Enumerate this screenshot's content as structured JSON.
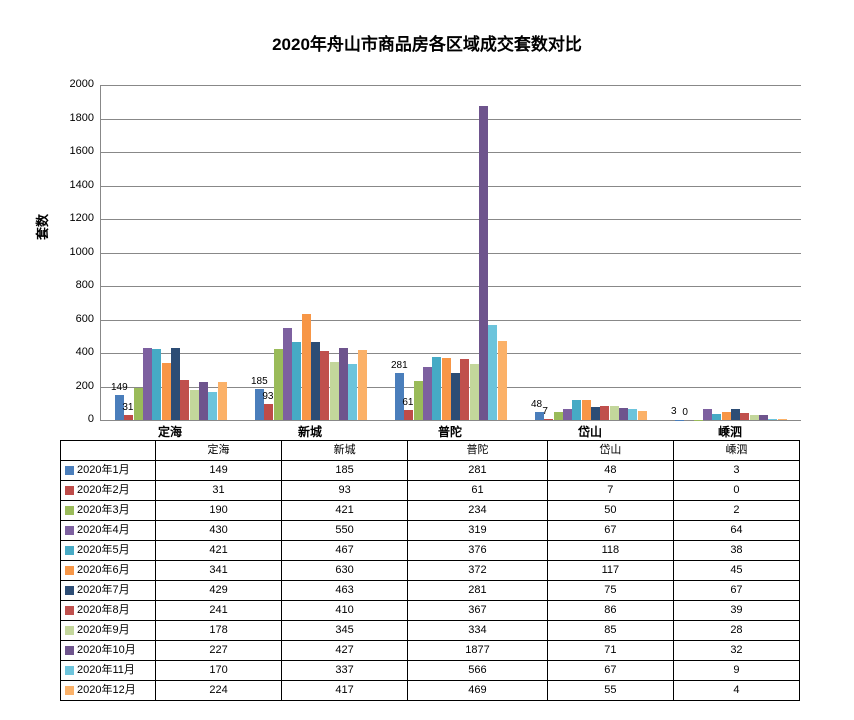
{
  "title": "2020年舟山市商品房各区域成交套数对比",
  "ylabel": "套数",
  "chart": {
    "type": "bar",
    "ylim": [
      0,
      2000
    ],
    "ytick_step": 200,
    "grid_color": "#888888",
    "background": "#ffffff",
    "categories": [
      "定海",
      "新城",
      "普陀",
      "岱山",
      "嵊泗"
    ],
    "series": [
      {
        "label": "2020年1月",
        "color": "#4a7ebb",
        "values": [
          149,
          185,
          281,
          48,
          3
        ]
      },
      {
        "label": "2020年2月",
        "color": "#be4b48",
        "values": [
          31,
          93,
          61,
          7,
          0
        ]
      },
      {
        "label": "2020年3月",
        "color": "#9abb59",
        "values": [
          190,
          421,
          234,
          50,
          2
        ]
      },
      {
        "label": "2020年4月",
        "color": "#7d60a0",
        "values": [
          430,
          550,
          319,
          67,
          64
        ]
      },
      {
        "label": "2020年5月",
        "color": "#46aac5",
        "values": [
          421,
          467,
          376,
          118,
          38
        ]
      },
      {
        "label": "2020年6月",
        "color": "#f79646",
        "values": [
          341,
          630,
          372,
          117,
          45
        ]
      },
      {
        "label": "2020年7月",
        "color": "#2c4d75",
        "values": [
          429,
          463,
          281,
          75,
          67
        ]
      },
      {
        "label": "2020年8月",
        "color": "#c0504d",
        "values": [
          241,
          410,
          367,
          86,
          39
        ]
      },
      {
        "label": "2020年9月",
        "color": "#c3d69b",
        "values": [
          178,
          345,
          334,
          85,
          28
        ]
      },
      {
        "label": "2020年10月",
        "color": "#6e548d",
        "values": [
          227,
          427,
          1877,
          71,
          32
        ]
      },
      {
        "label": "2020年11月",
        "color": "#6cc4dc",
        "values": [
          170,
          337,
          566,
          67,
          9
        ]
      },
      {
        "label": "2020年12月",
        "color": "#fbb168",
        "values": [
          224,
          417,
          469,
          55,
          4
        ]
      }
    ],
    "first_labels_text": [
      "149",
      "185",
      "281",
      "48",
      "3"
    ],
    "second_labels_text": [
      "31",
      "93",
      "61",
      "7",
      "0"
    ]
  }
}
